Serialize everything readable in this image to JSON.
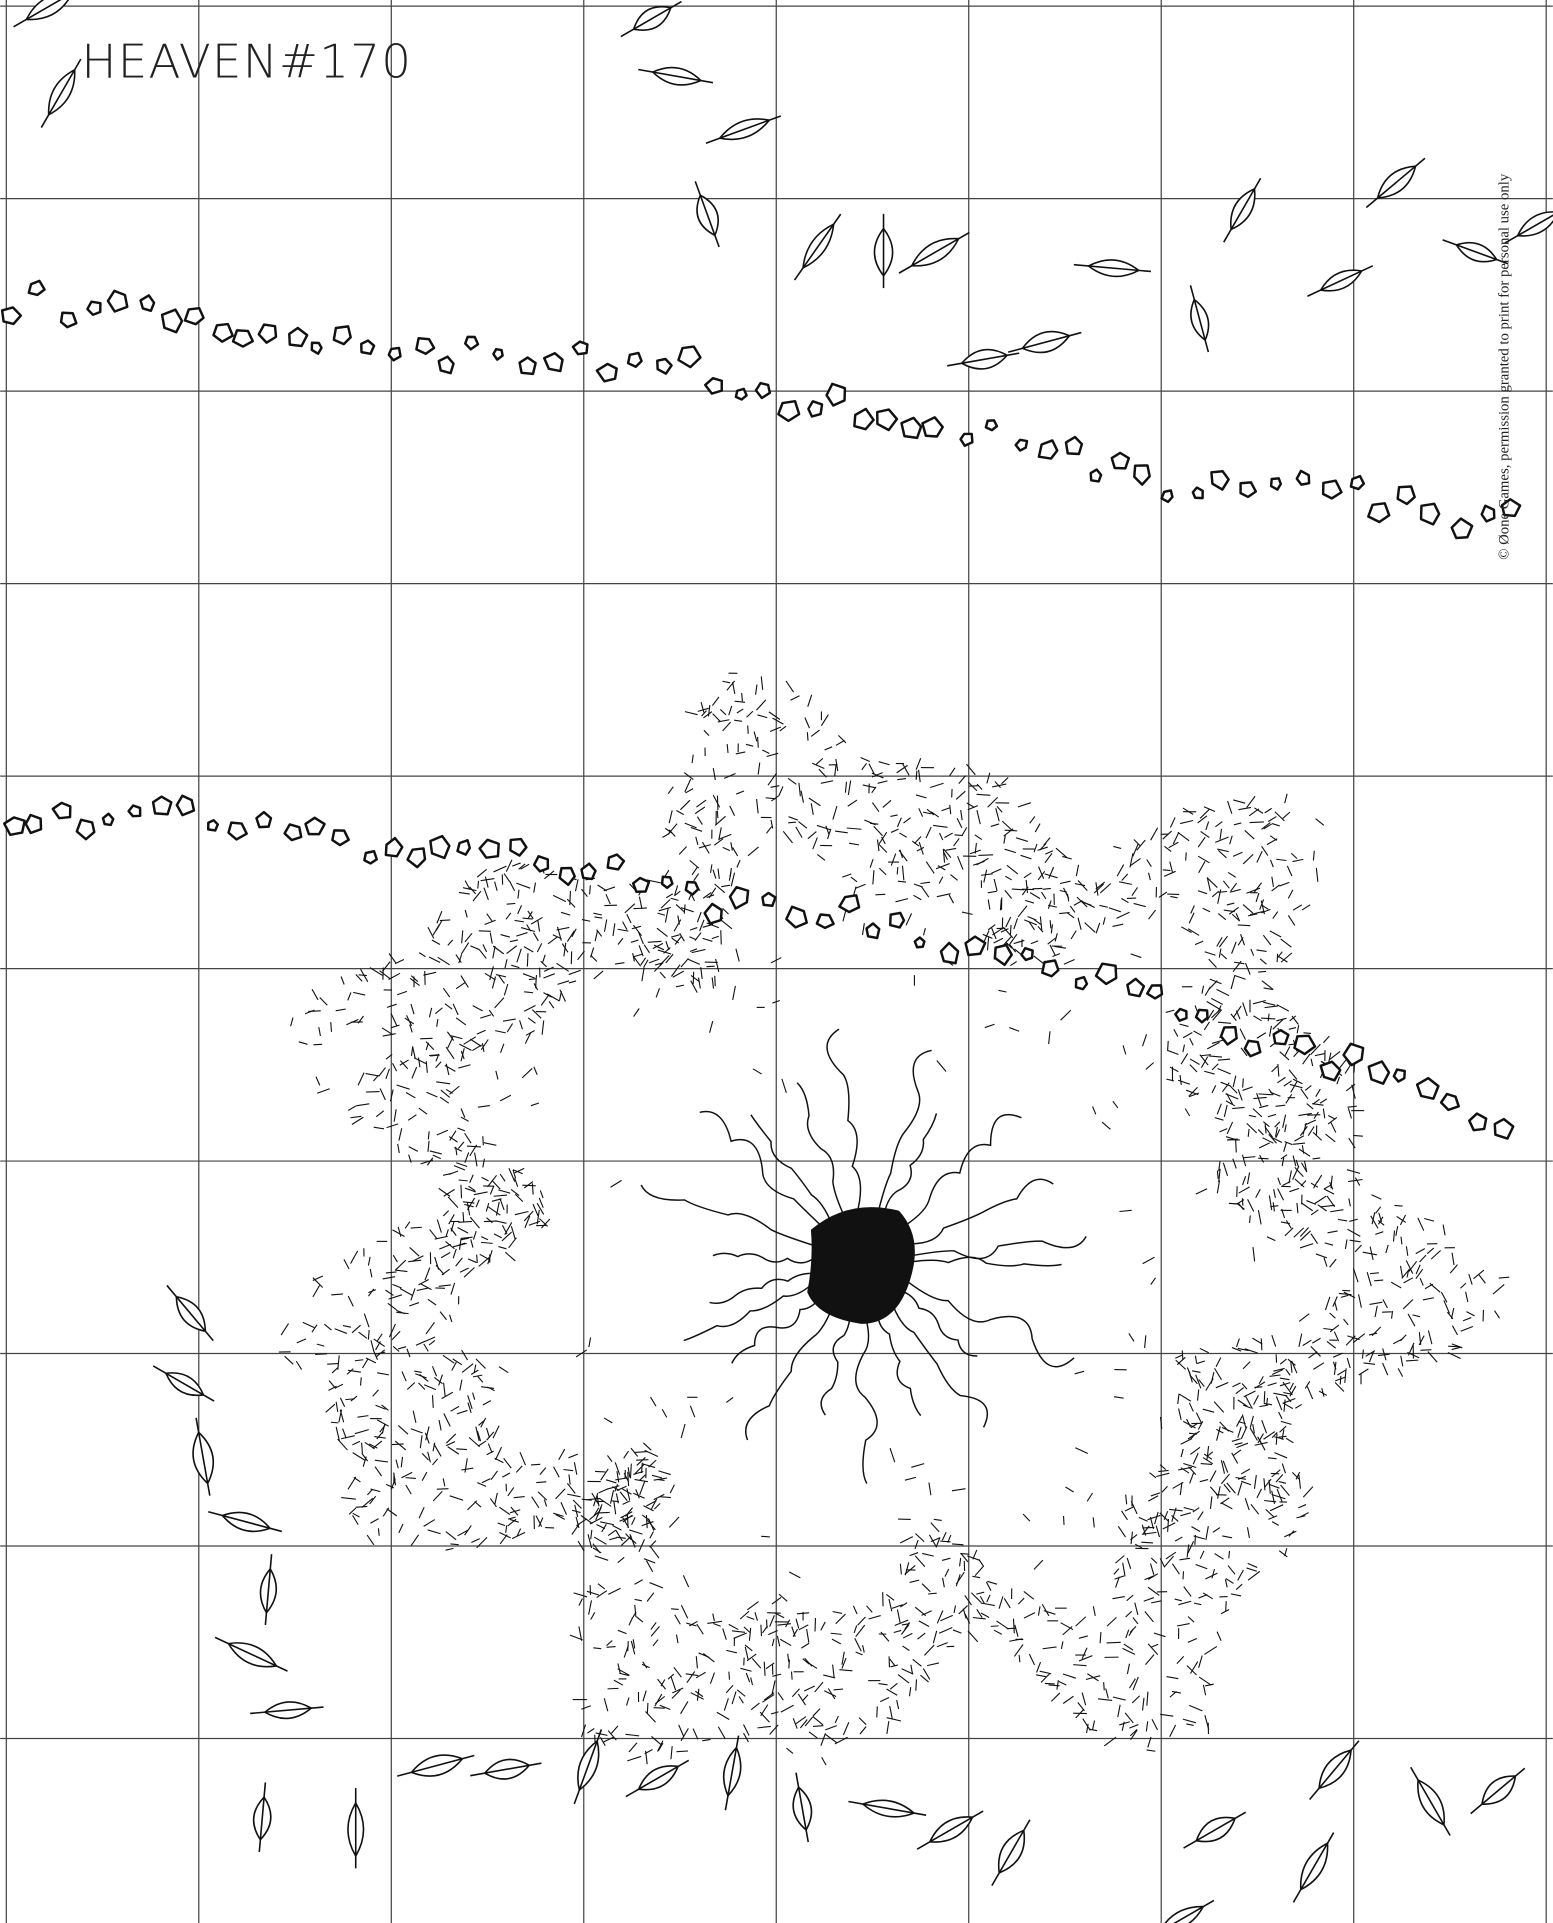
{
  "map": {
    "title": "HEAVEN#170",
    "copyright": "© Øone Games, permission granted to print for personal use only"
  }
}
